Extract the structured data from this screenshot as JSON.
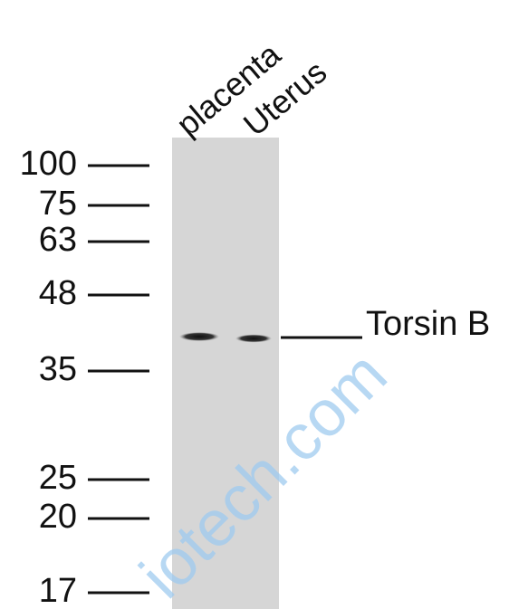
{
  "lanes": [
    "placenta",
    "Uterus"
  ],
  "markers": [
    100,
    75,
    63,
    48,
    35,
    25,
    20,
    17
  ],
  "band_label": "Torsin B",
  "watermark": "iotech.com"
}
